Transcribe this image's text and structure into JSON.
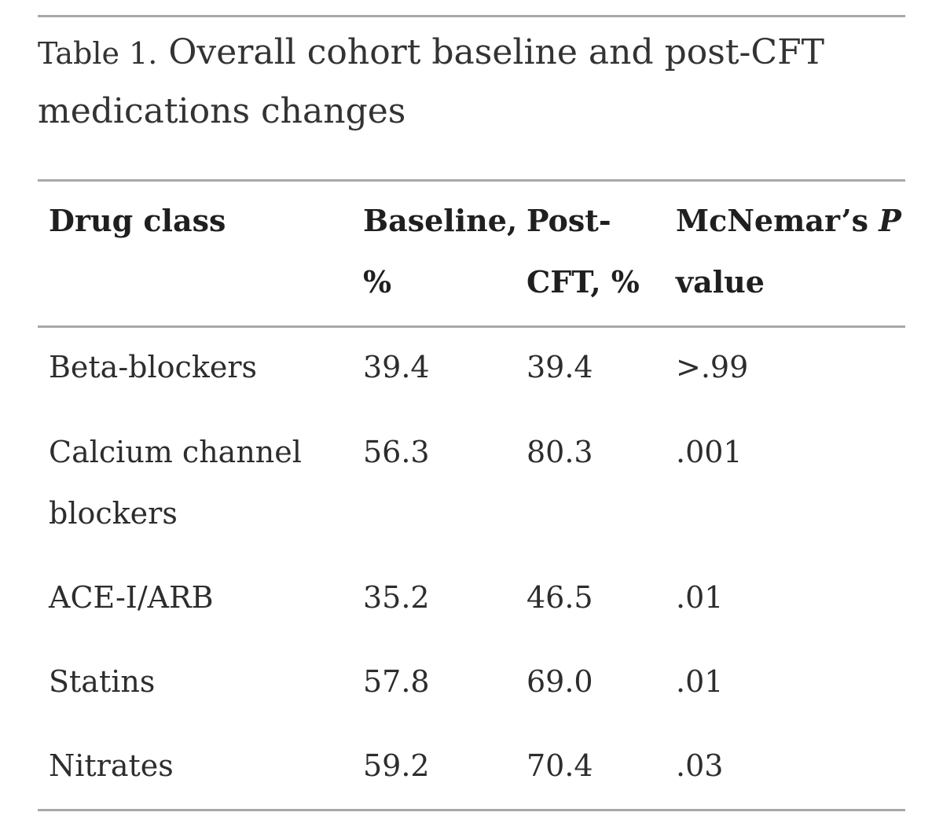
{
  "caption": {
    "prefix": "Table 1.",
    "text": "Overall cohort baseline and post-CFT medications changes"
  },
  "headers": {
    "drug_class": "Drug class",
    "baseline_line1": "Baseline,",
    "baseline_line2": "%",
    "post_line1": "Post-",
    "post_line2": "CFT, %",
    "p_line1": "McNemar’s",
    "p_italic": "P",
    "p_line2": "value"
  },
  "rows": [
    {
      "drug": "Beta-blockers",
      "drug_line2": "",
      "baseline": "39.4",
      "post": "39.4",
      "p": ">.99"
    },
    {
      "drug": "Calcium channel",
      "drug_line2": "blockers",
      "baseline": "56.3",
      "post": "80.3",
      "p": ".001"
    },
    {
      "drug": "ACE-I/ARB",
      "drug_line2": "",
      "baseline": "35.2",
      "post": "46.5",
      "p": ".01"
    },
    {
      "drug": "Statins",
      "drug_line2": "",
      "baseline": "57.8",
      "post": "69.0",
      "p": ".01"
    },
    {
      "drug": "Nitrates",
      "drug_line2": "",
      "baseline": "59.2",
      "post": "70.4",
      "p": ".03"
    }
  ]
}
